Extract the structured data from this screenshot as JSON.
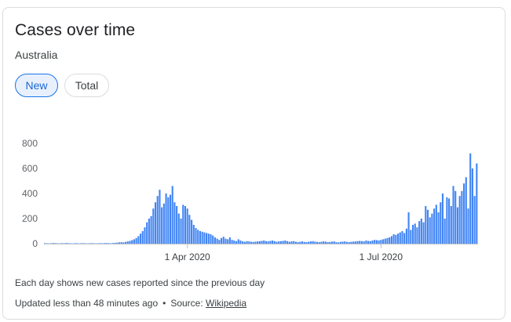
{
  "card": {
    "title": "Cases over time",
    "subtitle": "Australia",
    "toggle": {
      "new_label": "New",
      "total_label": "Total",
      "selected": "New"
    },
    "footnote": "Each day shows new cases reported since the previous day",
    "updated_text": "Updated less than 48 minutes ago",
    "separator": "•",
    "source_prefix": "Source:",
    "source_link": "Wikipedia"
  },
  "colors": {
    "bar": "#4285f4",
    "axis": "#bdc1c6",
    "chip_selected_bg": "#e8f0fe",
    "chip_selected_text": "#1967d2"
  },
  "chart_data": {
    "type": "bar",
    "start_date": "2020-01-25",
    "x_ticks": [
      {
        "label": "1 Apr 2020",
        "date": "2020-04-01"
      },
      {
        "label": "1 Jul 2020",
        "date": "2020-07-01"
      }
    ],
    "y_ticks": [
      0,
      200,
      400,
      600,
      800
    ],
    "ylim": [
      0,
      800
    ],
    "grid": false,
    "values": [
      4,
      3,
      2,
      3,
      5,
      4,
      3,
      2,
      4,
      3,
      5,
      4,
      3,
      2,
      3,
      4,
      2,
      3,
      4,
      3,
      2,
      3,
      4,
      3,
      2,
      3,
      4,
      3,
      4,
      5,
      4,
      3,
      5,
      6,
      8,
      10,
      12,
      10,
      14,
      18,
      22,
      28,
      35,
      45,
      60,
      80,
      100,
      130,
      170,
      200,
      220,
      280,
      330,
      380,
      430,
      290,
      320,
      400,
      370,
      390,
      460,
      330,
      300,
      240,
      200,
      310,
      300,
      280,
      230,
      190,
      150,
      125,
      110,
      100,
      95,
      90,
      85,
      80,
      75,
      65,
      50,
      40,
      30,
      45,
      55,
      40,
      35,
      50,
      30,
      25,
      20,
      35,
      25,
      18,
      15,
      20,
      18,
      15,
      14,
      16,
      18,
      20,
      22,
      25,
      20,
      18,
      22,
      25,
      20,
      15,
      18,
      20,
      22,
      25,
      20,
      15,
      18,
      20,
      15,
      12,
      15,
      18,
      14,
      12,
      15,
      18,
      20,
      16,
      14,
      12,
      15,
      18,
      16,
      12,
      14,
      16,
      18,
      12,
      10,
      14,
      16,
      18,
      14,
      12,
      15,
      16,
      18,
      20,
      22,
      20,
      18,
      25,
      22,
      20,
      25,
      30,
      28,
      25,
      30,
      35,
      40,
      45,
      50,
      60,
      75,
      70,
      80,
      90,
      100,
      85,
      120,
      250,
      110,
      150,
      160,
      130,
      180,
      200,
      170,
      300,
      270,
      210,
      240,
      280,
      310,
      250,
      330,
      400,
      200,
      370,
      360,
      300,
      460,
      420,
      290,
      380,
      420,
      480,
      530,
      280,
      720,
      600,
      380,
      640
    ]
  }
}
